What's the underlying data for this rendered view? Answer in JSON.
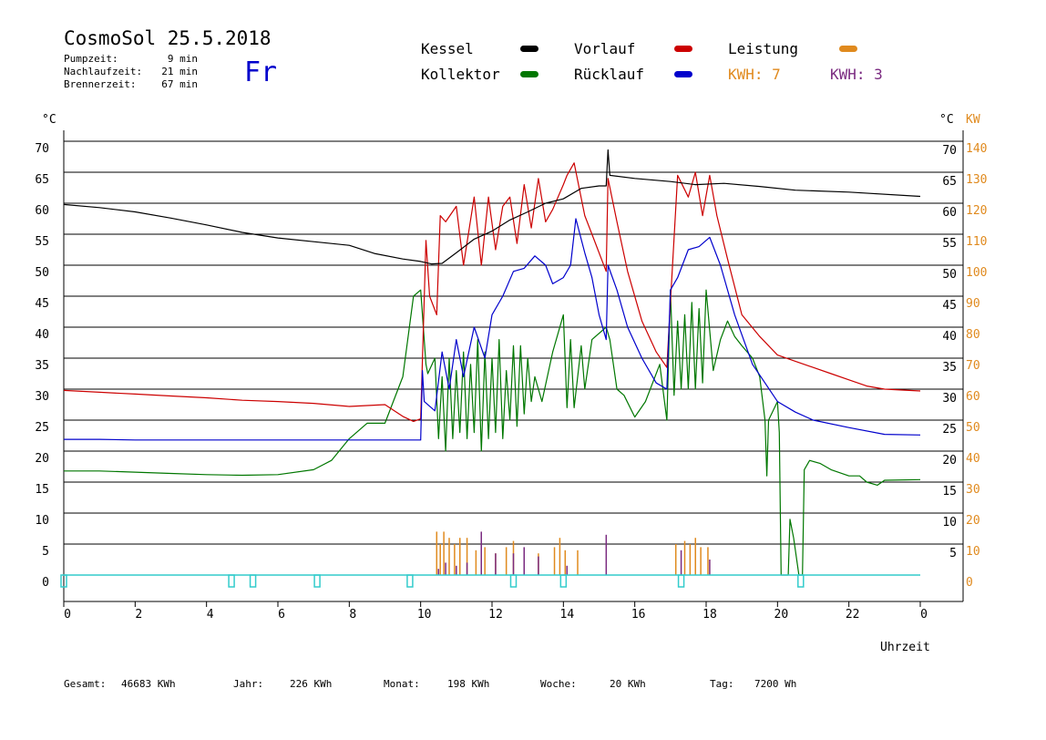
{
  "header": {
    "title": "CosmoSol 25.5.2018",
    "day": "Fr",
    "pumpzeit_label": "Pumpzeit:",
    "pumpzeit_value": "9 min",
    "nachlaufzeit_label": "Nachlaufzeit:",
    "nachlaufzeit_value": "21 min",
    "brennerzeit_label": "Brennerzeit:",
    "brennerzeit_value": "67 min"
  },
  "legend": {
    "kessel": "Kessel",
    "kollektor": "Kollektor",
    "vorlauf": "Vorlauf",
    "ruecklauf": "Rücklauf",
    "leistung": "Leistung",
    "kwh1": "KWH: 7",
    "kwh2": "KWH: 3"
  },
  "footer": {
    "gesamt_label": "Gesamt:",
    "gesamt_value": "46683 KWh",
    "jahr_label": "Jahr:",
    "jahr_value": "226 KWh",
    "monat_label": "Monat:",
    "monat_value": "198 KWh",
    "woche_label": "Woche:",
    "woche_value": "20 KWh",
    "tag_label": "Tag:",
    "tag_value": "7200 Wh"
  },
  "colors": {
    "kessel": "#000000",
    "vorlauf": "#cc0000",
    "ruecklauf": "#0000cc",
    "kollektor": "#007700",
    "leistung": "#e08a1e",
    "kwh2": "#7a2a80",
    "pump": "#33cccc",
    "axis_kw": "#e08a1e"
  },
  "chart_data": {
    "type": "line",
    "xlabel": "Uhrzeit",
    "y_left_unit": "°C",
    "y_right_unit_temp": "°C",
    "y_right_unit_kw": "KW",
    "x_ticks": [
      "0",
      "2",
      "4",
      "6",
      "8",
      "10",
      "12",
      "14",
      "16",
      "18",
      "20",
      "22",
      "0"
    ],
    "y_left_ticks": [
      "0",
      "5",
      "10",
      "15",
      "20",
      "25",
      "30",
      "35",
      "40",
      "45",
      "50",
      "55",
      "60",
      "65",
      "70"
    ],
    "y_right_temp_ticks": [
      "5",
      "10",
      "15",
      "20",
      "25",
      "30",
      "35",
      "40",
      "45",
      "50",
      "55",
      "60",
      "65",
      "70"
    ],
    "y_right_kw_ticks": [
      "0",
      "10",
      "20",
      "30",
      "40",
      "50",
      "60",
      "70",
      "80",
      "90",
      "100",
      "110",
      "120",
      "130",
      "140"
    ],
    "xlim": [
      0,
      24
    ],
    "ylim": [
      0,
      70
    ],
    "grid": true,
    "series": [
      {
        "name": "Kessel",
        "color": "#000000",
        "points": [
          [
            0,
            59.8
          ],
          [
            1,
            59.3
          ],
          [
            2,
            58.6
          ],
          [
            3,
            57.6
          ],
          [
            4,
            56.5
          ],
          [
            5,
            55.3
          ],
          [
            6,
            54.4
          ],
          [
            7,
            53.8
          ],
          [
            8,
            53.2
          ],
          [
            8.7,
            51.9
          ],
          [
            9.5,
            51
          ],
          [
            10,
            50.6
          ],
          [
            10.3,
            50.2
          ],
          [
            10.6,
            50.3
          ],
          [
            11,
            52
          ],
          [
            11.5,
            54.2
          ],
          [
            12,
            55.5
          ],
          [
            12.5,
            57.3
          ],
          [
            13,
            58.6
          ],
          [
            13.5,
            60
          ],
          [
            14,
            60.7
          ],
          [
            14.5,
            62.4
          ],
          [
            15,
            62.8
          ],
          [
            15.2,
            62.8
          ],
          [
            15.25,
            68.6
          ],
          [
            15.3,
            64.5
          ],
          [
            16,
            64
          ],
          [
            17,
            63.5
          ],
          [
            17.7,
            63
          ],
          [
            18.5,
            63.2
          ],
          [
            19.5,
            62.7
          ],
          [
            20.5,
            62.1
          ],
          [
            22,
            61.8
          ],
          [
            24,
            61.1
          ]
        ]
      },
      {
        "name": "Vorlauf",
        "color": "#cc0000",
        "points": [
          [
            0,
            29.8
          ],
          [
            1,
            29.5
          ],
          [
            2,
            29.2
          ],
          [
            3,
            28.9
          ],
          [
            4,
            28.6
          ],
          [
            5,
            28.2
          ],
          [
            6,
            28
          ],
          [
            7,
            27.7
          ],
          [
            8,
            27.2
          ],
          [
            9,
            27.5
          ],
          [
            9.5,
            25.6
          ],
          [
            9.8,
            24.8
          ],
          [
            10,
            25.2
          ],
          [
            10.15,
            54
          ],
          [
            10.25,
            45
          ],
          [
            10.45,
            42
          ],
          [
            10.55,
            58
          ],
          [
            10.7,
            57
          ],
          [
            11,
            59.5
          ],
          [
            11.2,
            50
          ],
          [
            11.5,
            61
          ],
          [
            11.7,
            50
          ],
          [
            11.9,
            61
          ],
          [
            12.1,
            52.5
          ],
          [
            12.3,
            59.5
          ],
          [
            12.5,
            61
          ],
          [
            12.7,
            53.5
          ],
          [
            12.9,
            63
          ],
          [
            13.1,
            56
          ],
          [
            13.3,
            64
          ],
          [
            13.5,
            57
          ],
          [
            13.7,
            59
          ],
          [
            14,
            63
          ],
          [
            14.1,
            64.5
          ],
          [
            14.3,
            66.5
          ],
          [
            14.6,
            58
          ],
          [
            14.8,
            55
          ],
          [
            15.2,
            49
          ],
          [
            15.25,
            64
          ],
          [
            15.5,
            57
          ],
          [
            15.8,
            49
          ],
          [
            16.2,
            41
          ],
          [
            16.6,
            36
          ],
          [
            16.9,
            33.5
          ],
          [
            17,
            44
          ],
          [
            17.2,
            64.5
          ],
          [
            17.5,
            61
          ],
          [
            17.7,
            65
          ],
          [
            17.9,
            58
          ],
          [
            18.1,
            64.5
          ],
          [
            18.3,
            58
          ],
          [
            18.6,
            51
          ],
          [
            19,
            42
          ],
          [
            19.5,
            38.5
          ],
          [
            20,
            35.5
          ],
          [
            20.5,
            34.5
          ],
          [
            21,
            33.5
          ],
          [
            21.5,
            32.5
          ],
          [
            22,
            31.5
          ],
          [
            22.5,
            30.5
          ],
          [
            23,
            30
          ],
          [
            24,
            29.7
          ]
        ]
      },
      {
        "name": "Rücklauf",
        "color": "#0000cc",
        "points": [
          [
            0,
            21.9
          ],
          [
            1,
            21.9
          ],
          [
            2,
            21.8
          ],
          [
            3,
            21.8
          ],
          [
            4,
            21.8
          ],
          [
            5,
            21.8
          ],
          [
            6,
            21.8
          ],
          [
            7,
            21.8
          ],
          [
            8,
            21.8
          ],
          [
            9,
            21.8
          ],
          [
            10,
            21.8
          ],
          [
            10.05,
            33
          ],
          [
            10.1,
            28
          ],
          [
            10.4,
            26.5
          ],
          [
            10.6,
            36
          ],
          [
            10.8,
            30
          ],
          [
            11,
            38
          ],
          [
            11.2,
            32
          ],
          [
            11.5,
            40
          ],
          [
            11.8,
            35
          ],
          [
            12,
            42
          ],
          [
            12.3,
            45
          ],
          [
            12.6,
            49
          ],
          [
            12.9,
            49.5
          ],
          [
            13.2,
            51.5
          ],
          [
            13.5,
            50
          ],
          [
            13.7,
            47
          ],
          [
            14,
            48
          ],
          [
            14.2,
            50
          ],
          [
            14.35,
            57.5
          ],
          [
            14.6,
            52
          ],
          [
            14.8,
            48
          ],
          [
            15,
            42
          ],
          [
            15.2,
            38
          ],
          [
            15.25,
            50
          ],
          [
            15.5,
            46
          ],
          [
            15.8,
            40
          ],
          [
            16.2,
            35
          ],
          [
            16.6,
            31
          ],
          [
            16.9,
            30
          ],
          [
            17,
            46
          ],
          [
            17.2,
            48
          ],
          [
            17.5,
            52.5
          ],
          [
            17.8,
            53
          ],
          [
            18.1,
            54.5
          ],
          [
            18.4,
            50
          ],
          [
            18.8,
            42
          ],
          [
            19.3,
            34
          ],
          [
            20,
            28
          ],
          [
            20.5,
            26.3
          ],
          [
            21,
            25
          ],
          [
            22,
            23.8
          ],
          [
            23,
            22.7
          ],
          [
            24,
            22.6
          ]
        ]
      },
      {
        "name": "Kollektor",
        "color": "#007700",
        "points": [
          [
            0,
            16.8
          ],
          [
            1,
            16.8
          ],
          [
            2,
            16.6
          ],
          [
            3,
            16.4
          ],
          [
            4,
            16.2
          ],
          [
            5,
            16.1
          ],
          [
            6,
            16.2
          ],
          [
            7,
            17
          ],
          [
            7.5,
            18.5
          ],
          [
            8,
            22
          ],
          [
            8.5,
            24.5
          ],
          [
            9,
            24.5
          ],
          [
            9.5,
            32
          ],
          [
            9.8,
            45
          ],
          [
            10,
            46
          ],
          [
            10.15,
            34
          ],
          [
            10.2,
            32.5
          ],
          [
            10.4,
            35
          ],
          [
            10.5,
            22
          ],
          [
            10.6,
            32
          ],
          [
            10.7,
            20
          ],
          [
            10.8,
            35
          ],
          [
            10.9,
            22
          ],
          [
            11,
            33
          ],
          [
            11.1,
            23
          ],
          [
            11.2,
            36
          ],
          [
            11.3,
            22
          ],
          [
            11.4,
            34
          ],
          [
            11.5,
            23
          ],
          [
            11.6,
            38
          ],
          [
            11.7,
            20
          ],
          [
            11.8,
            36
          ],
          [
            11.9,
            22
          ],
          [
            12,
            35
          ],
          [
            12.1,
            23
          ],
          [
            12.2,
            38
          ],
          [
            12.3,
            22
          ],
          [
            12.4,
            33
          ],
          [
            12.5,
            25
          ],
          [
            12.6,
            37
          ],
          [
            12.7,
            24
          ],
          [
            12.8,
            37
          ],
          [
            12.9,
            26
          ],
          [
            13,
            35
          ],
          [
            13.1,
            28
          ],
          [
            13.2,
            32
          ],
          [
            13.4,
            28
          ],
          [
            13.7,
            36
          ],
          [
            14,
            42
          ],
          [
            14.1,
            27
          ],
          [
            14.2,
            38
          ],
          [
            14.3,
            27
          ],
          [
            14.5,
            37
          ],
          [
            14.6,
            30
          ],
          [
            14.8,
            38
          ],
          [
            15.2,
            40
          ],
          [
            15.3,
            38
          ],
          [
            15.5,
            30
          ],
          [
            15.7,
            29
          ],
          [
            16,
            25.5
          ],
          [
            16.3,
            28
          ],
          [
            16.7,
            34
          ],
          [
            16.9,
            25
          ],
          [
            17,
            46
          ],
          [
            17.1,
            29
          ],
          [
            17.2,
            41
          ],
          [
            17.3,
            30
          ],
          [
            17.4,
            42
          ],
          [
            17.5,
            30
          ],
          [
            17.6,
            44
          ],
          [
            17.7,
            30
          ],
          [
            17.8,
            43
          ],
          [
            17.9,
            31
          ],
          [
            18,
            46
          ],
          [
            18.2,
            33
          ],
          [
            18.4,
            38
          ],
          [
            18.6,
            41
          ],
          [
            18.8,
            38.5
          ],
          [
            19,
            37
          ],
          [
            19.3,
            35
          ],
          [
            19.5,
            32
          ],
          [
            19.65,
            25
          ],
          [
            19.7,
            16
          ],
          [
            19.75,
            25
          ],
          [
            20,
            28
          ],
          [
            20.05,
            23
          ],
          [
            20.1,
            0
          ],
          [
            20.3,
            0
          ],
          [
            20.35,
            9
          ],
          [
            20.45,
            6
          ],
          [
            20.6,
            0
          ],
          [
            20.7,
            0
          ],
          [
            20.75,
            17
          ],
          [
            20.9,
            18.5
          ],
          [
            21.2,
            18
          ],
          [
            21.5,
            17
          ],
          [
            22,
            16
          ],
          [
            22.3,
            16
          ],
          [
            22.5,
            15
          ],
          [
            22.8,
            14.5
          ],
          [
            23,
            15.3
          ],
          [
            24,
            15.4
          ]
        ]
      }
    ],
    "leistung_bars_kw": [
      [
        10.45,
        14
      ],
      [
        10.55,
        10
      ],
      [
        10.65,
        14
      ],
      [
        10.8,
        12
      ],
      [
        10.95,
        10
      ],
      [
        11.1,
        12
      ],
      [
        11.3,
        12
      ],
      [
        11.55,
        8
      ],
      [
        11.8,
        9
      ],
      [
        12.1,
        7
      ],
      [
        12.4,
        9
      ],
      [
        12.6,
        11
      ],
      [
        12.9,
        7
      ],
      [
        13.3,
        7
      ],
      [
        13.75,
        9
      ],
      [
        13.9,
        12
      ],
      [
        14.05,
        8
      ],
      [
        14.4,
        8
      ],
      [
        17.15,
        10
      ],
      [
        17.4,
        11
      ],
      [
        17.55,
        10
      ],
      [
        17.7,
        12
      ],
      [
        17.85,
        9
      ],
      [
        18.05,
        9
      ]
    ],
    "kwh_bars_kw": [
      [
        10.5,
        2
      ],
      [
        10.7,
        4
      ],
      [
        11,
        3
      ],
      [
        11.3,
        4
      ],
      [
        11.7,
        14
      ],
      [
        12.1,
        7
      ],
      [
        12.6,
        7
      ],
      [
        12.9,
        9
      ],
      [
        13.3,
        6
      ],
      [
        14.1,
        3
      ],
      [
        15.2,
        13
      ],
      [
        17.3,
        8
      ],
      [
        18.1,
        5
      ]
    ],
    "pump_markers_x": [
      0,
      4.7,
      5.3,
      7.1,
      9.7,
      12.6,
      14.0,
      17.3,
      20.65
    ]
  }
}
